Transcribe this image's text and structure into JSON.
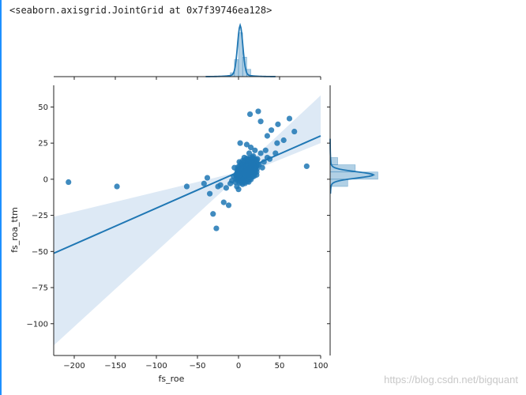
{
  "page": {
    "repr_text": "<seaborn.axisgrid.JointGrid at 0x7f39746ea128>",
    "watermark": "https://blog.csdn.net/bigquant"
  },
  "colors": {
    "accent": "#1f77b4",
    "band": "#c6dbef",
    "axis": "#222222",
    "left_rule": "#1e90ff"
  },
  "chart_data": {
    "type": "scatter",
    "title": "",
    "xlabel": "fs_roe",
    "ylabel": "fs_roa_ttm",
    "xlim": [
      -225,
      100
    ],
    "ylim": [
      -122,
      65
    ],
    "xticks": [
      -200,
      -150,
      -100,
      -50,
      0,
      50,
      100
    ],
    "yticks": [
      50,
      25,
      0,
      -25,
      -50,
      -75,
      -100
    ],
    "x_tick_labels": [
      "−200",
      "−150",
      "−100",
      "−50",
      "0",
      "50",
      "100"
    ],
    "y_tick_labels": [
      "50",
      "25",
      "0",
      "−25",
      "−50",
      "−75",
      "−100"
    ],
    "regression": {
      "slope": 0.25,
      "intercept": 5,
      "x_range": [
        -225,
        100
      ]
    },
    "confidence_band": {
      "upper": [
        [
          -225,
          -26
        ],
        [
          0,
          5
        ],
        [
          100,
          58
        ]
      ],
      "lower": [
        [
          -225,
          -115
        ],
        [
          0,
          2
        ],
        [
          100,
          25
        ]
      ]
    },
    "points": [
      [
        -207,
        -2
      ],
      [
        -148,
        -5
      ],
      [
        -63,
        -5
      ],
      [
        -42,
        -3
      ],
      [
        -38,
        1
      ],
      [
        -35,
        -10
      ],
      [
        -31,
        -24
      ],
      [
        -27,
        -34
      ],
      [
        -25,
        -5
      ],
      [
        -22,
        -4
      ],
      [
        -18,
        -16
      ],
      [
        -15,
        -6
      ],
      [
        -12,
        -18
      ],
      [
        -10,
        -3
      ],
      [
        -8,
        -1
      ],
      [
        -6,
        2
      ],
      [
        -5,
        8
      ],
      [
        -4,
        -2
      ],
      [
        -3,
        3
      ],
      [
        -2,
        -5
      ],
      [
        -1,
        5
      ],
      [
        0,
        1
      ],
      [
        0,
        -7
      ],
      [
        1,
        12
      ],
      [
        2,
        3
      ],
      [
        3,
        7
      ],
      [
        4,
        -1
      ],
      [
        5,
        10
      ],
      [
        6,
        4
      ],
      [
        7,
        15
      ],
      [
        8,
        2
      ],
      [
        9,
        9
      ],
      [
        10,
        6
      ],
      [
        11,
        13
      ],
      [
        12,
        3
      ],
      [
        13,
        18
      ],
      [
        14,
        8
      ],
      [
        15,
        22
      ],
      [
        16,
        5
      ],
      [
        17,
        11
      ],
      [
        18,
        16
      ],
      [
        19,
        7
      ],
      [
        20,
        20
      ],
      [
        21,
        9
      ],
      [
        22,
        3
      ],
      [
        23,
        14
      ],
      [
        25,
        10
      ],
      [
        27,
        18
      ],
      [
        29,
        8
      ],
      [
        31,
        12
      ],
      [
        33,
        20
      ],
      [
        35,
        15
      ],
      [
        2,
        25
      ],
      [
        10,
        24
      ],
      [
        14,
        45
      ],
      [
        24,
        47
      ],
      [
        27,
        40
      ],
      [
        35,
        30
      ],
      [
        40,
        34
      ],
      [
        48,
        38
      ],
      [
        62,
        42
      ],
      [
        68,
        33
      ],
      [
        83,
        9
      ],
      [
        47,
        25
      ],
      [
        55,
        27
      ],
      [
        38,
        14
      ],
      [
        45,
        18
      ]
    ],
    "x_density": {
      "bins": [
        [
          -10,
          -5,
          0.08
        ],
        [
          -5,
          0,
          0.35
        ],
        [
          0,
          5,
          0.9
        ],
        [
          5,
          10,
          0.4
        ],
        [
          10,
          15,
          0.15
        ]
      ],
      "peak_x": 2
    },
    "y_density": {
      "bins": [
        [
          -5,
          0,
          0.35
        ],
        [
          0,
          5,
          0.95
        ],
        [
          5,
          10,
          0.5
        ],
        [
          10,
          15,
          0.15
        ]
      ],
      "peak_y": 3
    }
  }
}
